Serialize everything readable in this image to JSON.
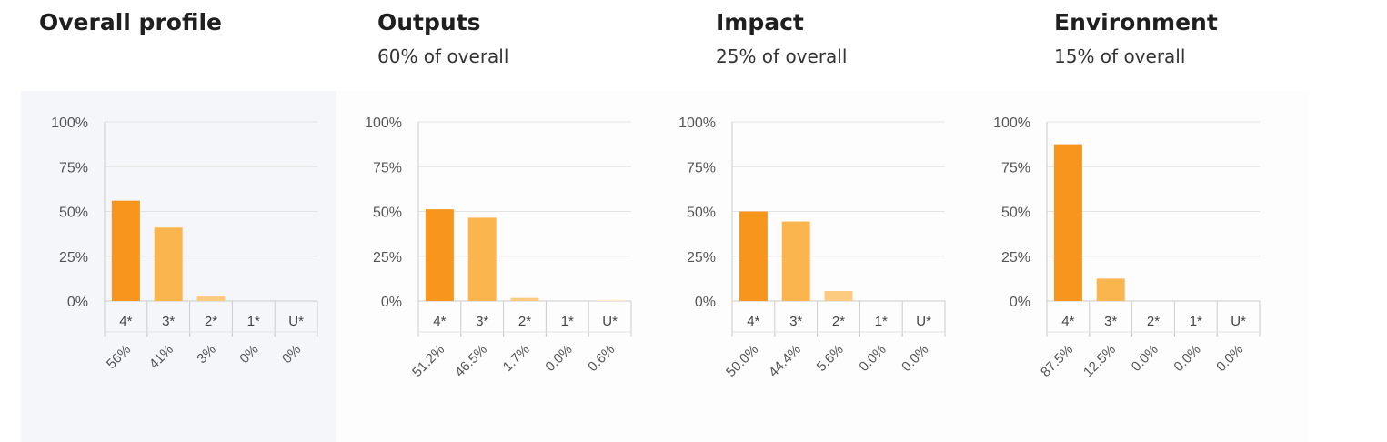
{
  "headers": [
    {
      "title": "Overall profile",
      "subtitle": ""
    },
    {
      "title": "Outputs",
      "subtitle": "60% of overall"
    },
    {
      "title": "Impact",
      "subtitle": "25% of overall"
    },
    {
      "title": "Environment",
      "subtitle": "15% of overall"
    }
  ],
  "colors": {
    "bar_4star": "#f7951c",
    "bar_3star": "#fbb54f",
    "bar_2star": "#fccb7f",
    "bar_1star": "#fde0b0",
    "bar_unclassified": "#fde9c8",
    "grid": "#e3e3e3",
    "axis": "#cccccc"
  },
  "chart_data": [
    {
      "type": "bar",
      "title": "Overall profile",
      "categories": [
        "4*",
        "3*",
        "2*",
        "1*",
        "U*"
      ],
      "values": [
        56,
        41,
        3,
        0,
        0
      ],
      "value_labels": [
        "56%",
        "41%",
        "3%",
        "0%",
        "0%"
      ],
      "ylim": [
        0,
        100
      ],
      "yticks": [
        "0%",
        "25%",
        "50%",
        "75%",
        "100%"
      ],
      "grid": true
    },
    {
      "type": "bar",
      "title": "Outputs",
      "categories": [
        "4*",
        "3*",
        "2*",
        "1*",
        "U*"
      ],
      "values": [
        51.2,
        46.5,
        1.7,
        0.0,
        0.6
      ],
      "value_labels": [
        "51.2%",
        "46.5%",
        "1.7%",
        "0.0%",
        "0.6%"
      ],
      "ylim": [
        0,
        100
      ],
      "yticks": [
        "0%",
        "25%",
        "50%",
        "75%",
        "100%"
      ],
      "grid": true
    },
    {
      "type": "bar",
      "title": "Impact",
      "categories": [
        "4*",
        "3*",
        "2*",
        "1*",
        "U*"
      ],
      "values": [
        50.0,
        44.4,
        5.6,
        0.0,
        0.0
      ],
      "value_labels": [
        "50.0%",
        "44.4%",
        "5.6%",
        "0.0%",
        "0.0%"
      ],
      "ylim": [
        0,
        100
      ],
      "yticks": [
        "0%",
        "25%",
        "50%",
        "75%",
        "100%"
      ],
      "grid": true
    },
    {
      "type": "bar",
      "title": "Environment",
      "categories": [
        "4*",
        "3*",
        "2*",
        "1*",
        "U*"
      ],
      "values": [
        87.5,
        12.5,
        0.0,
        0.0,
        0.0
      ],
      "value_labels": [
        "87.5%",
        "12.5%",
        "0.0%",
        "0.0%",
        "0.0%"
      ],
      "ylim": [
        0,
        100
      ],
      "yticks": [
        "0%",
        "25%",
        "50%",
        "75%",
        "100%"
      ],
      "grid": true
    }
  ]
}
